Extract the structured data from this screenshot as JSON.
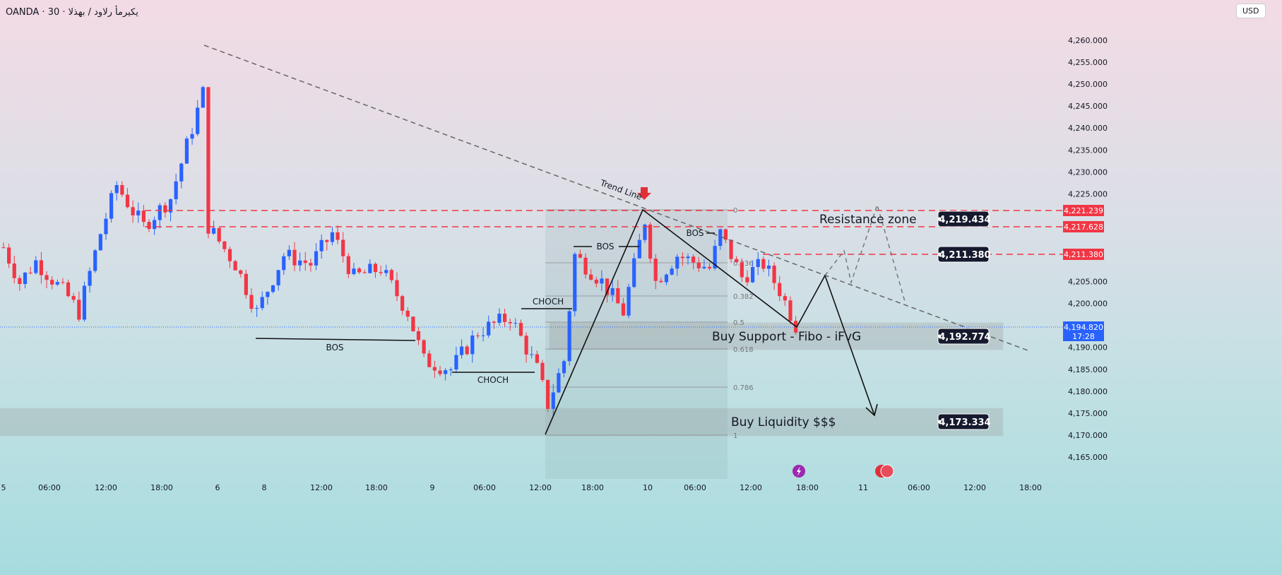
{
  "header": {
    "title": "OANDA · 30 · يكيرمأ رلاود / بهذلا",
    "currency": "USD"
  },
  "colors": {
    "up": "#2962ff",
    "down": "#f23645",
    "level": "#f23645"
  },
  "chart_data": {
    "type": "candlestick",
    "title": "OANDA · 30",
    "ylim": [
      4162,
      4263
    ],
    "y_ticks": [
      4165,
      4170,
      4175,
      4180,
      4185,
      4190,
      4195,
      4200,
      4205,
      4210,
      4215,
      4220,
      4225,
      4230,
      4235,
      4240,
      4245,
      4250,
      4255,
      4260
    ],
    "x_ticks": [
      "5",
      "06:00",
      "12:00",
      "18:00",
      "6",
      "8",
      "12:00",
      "18:00",
      "9",
      "06:00",
      "12:00",
      "18:00",
      "10",
      "06:00",
      "12:00",
      "18:00",
      "11",
      "06:00",
      "12:00",
      "18:00"
    ],
    "price_path": [
      [
        0,
        4212.8
      ],
      [
        3,
        4204.8
      ],
      [
        6,
        4209.6
      ],
      [
        12,
        4201.5
      ],
      [
        14,
        4198
      ],
      [
        18,
        4216
      ],
      [
        21,
        4227
      ],
      [
        24,
        4221
      ],
      [
        26,
        4217.6
      ],
      [
        31,
        4224
      ],
      [
        37,
        4248
      ],
      [
        38,
        4217.6
      ],
      [
        43,
        4209
      ],
      [
        47,
        4198
      ],
      [
        52,
        4211
      ],
      [
        57,
        4209
      ],
      [
        61,
        4216
      ],
      [
        65,
        4206
      ],
      [
        70,
        4208
      ],
      [
        75,
        4198
      ],
      [
        78,
        4187
      ],
      [
        83,
        4185
      ],
      [
        88,
        4193.5
      ],
      [
        94,
        4197
      ],
      [
        99,
        4185
      ],
      [
        101,
        4177
      ],
      [
        104,
        4187
      ],
      [
        106,
        4211
      ],
      [
        111,
        4205
      ],
      [
        115,
        4198
      ],
      [
        119,
        4219
      ],
      [
        121,
        4205
      ],
      [
        125,
        4211
      ],
      [
        131,
        4208
      ],
      [
        133,
        4216
      ],
      [
        137,
        4206
      ],
      [
        141,
        4209
      ],
      [
        144,
        4203
      ],
      [
        147,
        4195
      ]
    ],
    "levels": [
      {
        "price": 4221.239
      },
      {
        "price": 4217.628
      },
      {
        "price": 4211.38
      }
    ],
    "current_price": "4,194.820",
    "countdown": "17:28",
    "axis_labels": [
      "4,221.239",
      "4,217.628",
      "4,211.380"
    ],
    "price_tags": [
      "4,219.434",
      "4,211.380",
      "4,192.774",
      "4,173.334"
    ],
    "fib_levels": [
      "0",
      "0.236",
      "0.382",
      "0.5",
      "0.618",
      "0.786",
      "1"
    ],
    "annotations": {
      "resistance": "Resistance zone",
      "support": "Buy Support - Fibo - iFvG",
      "liquidity": "Buy Liquidity $$$",
      "trend": "Trend Line",
      "bos": "BOS",
      "choch": "CHOCH"
    }
  }
}
